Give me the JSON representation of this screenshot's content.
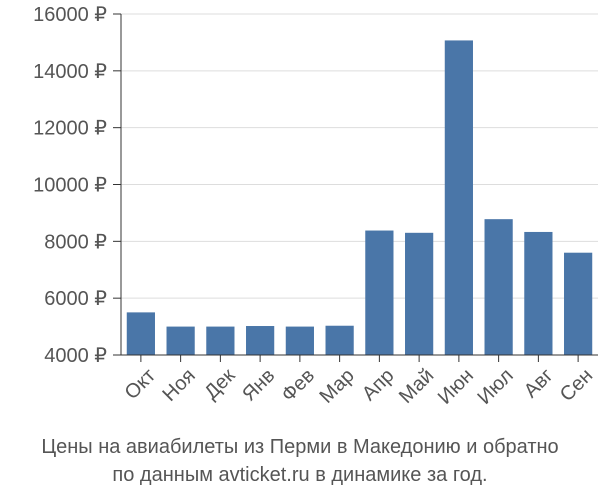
{
  "caption": {
    "line1": "Цены на авиабилеты из Перми в Македонию и обратно",
    "line2": "по данным avticket.ru в динамике за год."
  },
  "chart_data": {
    "type": "bar",
    "categories": [
      "Окт",
      "Ноя",
      "Дек",
      "Янв",
      "Фев",
      "Мар",
      "Апр",
      "Май",
      "Июн",
      "Июл",
      "Авг",
      "Сен"
    ],
    "values": [
      5500,
      5000,
      5000,
      5020,
      5000,
      5030,
      8380,
      8300,
      15070,
      8780,
      8330,
      7600
    ],
    "ylim": [
      4000,
      16000
    ],
    "yticks": [
      4000,
      6000,
      8000,
      10000,
      12000,
      14000,
      16000
    ],
    "ytick_labels": [
      "4000 ₽",
      "6000 ₽",
      "8000 ₽",
      "10000 ₽",
      "12000 ₽",
      "14000 ₽",
      "16000 ₽"
    ],
    "grid": true,
    "colors": {
      "bar": "#4a76a8",
      "grid": "#dddddd",
      "axis": "#333333"
    }
  }
}
